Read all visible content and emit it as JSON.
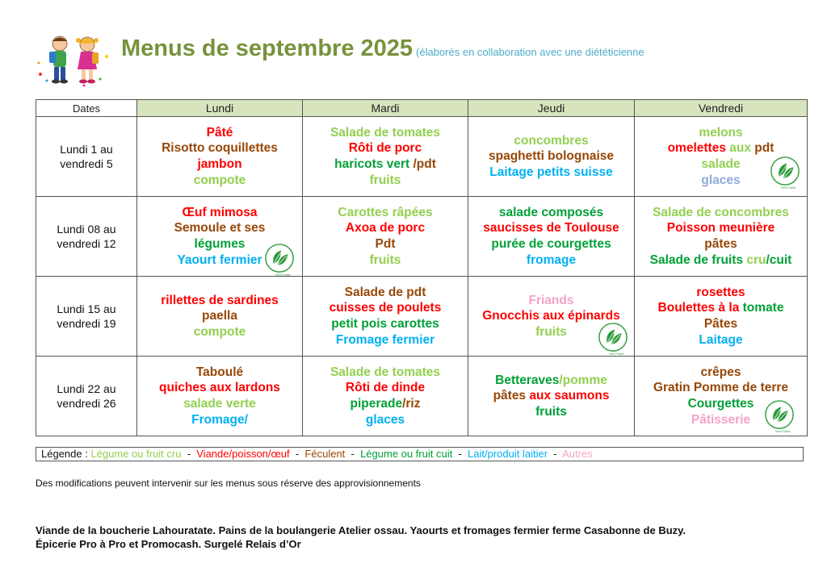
{
  "title": {
    "main": "Menus de septembre 2025",
    "sub": "(élaborés en collaboration avec une diététicienne"
  },
  "colors": {
    "cru": "#92d050",
    "viande": "#ff0000",
    "feculent": "#974706",
    "cuit": "#00a036",
    "laitier": "#00b0f0",
    "autres": "#f4a3c8",
    "glaces_alt": "#8eaadb",
    "title": "#77933c"
  },
  "table": {
    "headers": [
      "Dates",
      "Lundi",
      "Mardi",
      "Jeudi",
      "Vendredi"
    ],
    "weeks": [
      {
        "dates": [
          "Lundi 1 au",
          "vendredi  5"
        ],
        "days": [
          [
            [
              [
                "Pâté",
                "viande"
              ]
            ],
            [
              [
                "Risotto coquillettes",
                "feculent"
              ]
            ],
            [
              [
                "jambon",
                "viande"
              ]
            ],
            [
              [
                "compote",
                "cru"
              ]
            ]
          ],
          [
            [
              [
                "Salade de tomates",
                "cru"
              ]
            ],
            [
              [
                "Rôti de  porc",
                "viande"
              ]
            ],
            [
              [
                "haricots vert ",
                "cuit"
              ],
              [
                "/pdt",
                "feculent"
              ]
            ],
            [
              [
                "fruits",
                "cru"
              ]
            ]
          ],
          [
            [
              [
                "concombres",
                "cru"
              ]
            ],
            [
              [
                "spaghetti bolognaise",
                "feculent"
              ]
            ],
            [
              [
                "Laitage petits suisse",
                "laitier"
              ]
            ]
          ],
          [
            [
              [
                "melons",
                "cru"
              ]
            ],
            [
              [
                "omelettes ",
                "viande"
              ],
              [
                "aux ",
                "cru"
              ],
              [
                "pdt",
                "feculent"
              ]
            ],
            [
              [
                "salade",
                "cru"
              ]
            ],
            [
              [
                "glaces",
                "glaces_alt"
              ]
            ]
          ]
        ]
      },
      {
        "dates": [
          "Lundi 08 au",
          "vendredi 12"
        ],
        "days": [
          [
            [
              [
                "Œuf mimosa",
                "viande"
              ]
            ],
            [
              [
                "Semoule et ses",
                "feculent"
              ]
            ],
            [
              [
                "légumes",
                "cuit"
              ]
            ],
            [
              [
                "Yaourt fermier",
                "laitier"
              ]
            ]
          ],
          [
            [
              [
                "Carottes râpées",
                "cru"
              ]
            ],
            [
              [
                "Axoa de porc",
                "viande"
              ]
            ],
            [
              [
                "Pdt",
                "feculent"
              ]
            ],
            [
              [
                "fruits",
                "cru"
              ]
            ]
          ],
          [
            [
              [
                "salade composés",
                "cuit"
              ]
            ],
            [
              [
                "saucisses de Toulouse",
                "viande"
              ]
            ],
            [
              [
                "purée de  courgettes",
                "cuit"
              ]
            ],
            [
              [
                "fromage",
                "laitier"
              ]
            ]
          ],
          [
            [
              [
                "Salade de concombres",
                "cru"
              ]
            ],
            [
              [
                "Poisson meunière",
                "viande"
              ]
            ],
            [
              [
                "pâtes",
                "feculent"
              ]
            ],
            [
              [
                "Salade de fruits ",
                "cuit"
              ],
              [
                "cru",
                "cru"
              ],
              [
                "/cuit",
                "cuit"
              ]
            ]
          ]
        ]
      },
      {
        "dates": [
          "Lundi 15 au",
          "vendredi 19"
        ],
        "days": [
          [
            [
              [
                "rillettes de sardines",
                "viande"
              ]
            ],
            [
              [
                "paella",
                "feculent"
              ]
            ],
            [
              [
                "compote",
                "cru"
              ]
            ]
          ],
          [
            [
              [
                "Salade de pdt",
                "feculent"
              ]
            ],
            [
              [
                "cuisses de poulets",
                "viande"
              ]
            ],
            [
              [
                "petit pois  carottes",
                "cuit"
              ]
            ],
            [
              [
                "Fromage fermier",
                "laitier"
              ]
            ]
          ],
          [
            [
              [
                "Friands",
                "autres"
              ]
            ],
            [
              [
                "Gnocchis aux épinards",
                "viande"
              ]
            ],
            [
              [
                "fruits",
                "cru"
              ]
            ]
          ],
          [
            [
              [
                "rosettes",
                "viande"
              ]
            ],
            [
              [
                "Boulettes  à la ",
                "viande"
              ],
              [
                "tomate",
                "cuit"
              ]
            ],
            [
              [
                "Pâtes",
                "feculent"
              ]
            ],
            [
              [
                "Laitage",
                "laitier"
              ]
            ]
          ]
        ]
      },
      {
        "dates": [
          "Lundi 22 au",
          "vendredi 26"
        ],
        "days": [
          [
            [
              [
                "Taboulé",
                "feculent"
              ]
            ],
            [
              [
                "quiches aux lardons",
                "viande"
              ]
            ],
            [
              [
                "salade verte",
                "cru"
              ]
            ],
            [
              [
                "Fromage/",
                "laitier"
              ]
            ]
          ],
          [
            [
              [
                "Salade de tomates",
                "cru"
              ]
            ],
            [
              [
                "Rôti de  dinde",
                "viande"
              ]
            ],
            [
              [
                "piperade",
                "cuit"
              ],
              [
                "/riz",
                "feculent"
              ]
            ],
            [
              [
                "glaces",
                "laitier"
              ]
            ]
          ],
          [
            [
              [
                "Betteraves",
                "cuit"
              ],
              [
                "/pomme",
                "cru"
              ]
            ],
            [
              [
                "pâtes ",
                "feculent"
              ],
              [
                "aux saumons",
                "viande"
              ]
            ],
            [
              [
                "fruits",
                "cuit"
              ]
            ]
          ],
          [
            [
              [
                "crêpes",
                "feculent"
              ]
            ],
            [
              [
                "Gratin Pomme de terre",
                "feculent"
              ]
            ],
            [
              [
                "Courgettes",
                "cuit"
              ]
            ],
            [
              [
                "Pâtisserie",
                "autres"
              ]
            ]
          ]
        ]
      }
    ]
  },
  "bio_badge": {
    "label": "Vert Fruité",
    "icon": "leaf-badge-icon"
  },
  "legend": [
    [
      "Légende : ",
      "plain"
    ],
    [
      "Légume ou fruit cru",
      "cru"
    ],
    [
      "  -  ",
      "plain"
    ],
    [
      "Viande/poisson/œuf",
      "viande"
    ],
    [
      "  -  ",
      "plain"
    ],
    [
      "Féculent",
      "feculent"
    ],
    [
      "  -  ",
      "plain"
    ],
    [
      "Légume ou fruit cuit",
      "cuit"
    ],
    [
      "  -  ",
      "plain"
    ],
    [
      "Lait/produit laitier",
      "laitier"
    ],
    [
      "  -  ",
      "plain"
    ],
    [
      "Autres",
      "autres"
    ]
  ],
  "note": "Des modifications peuvent intervenir sur les menus sous réserve des approvisionnements",
  "suppliers": [
    "Viande de la boucherie  Lahouratate. Pains de la boulangerie  Atelier ossau. Yaourts et fromages fermier ferme Casabonne de Buzy.",
    "Épicerie Pro à Pro et Promocash. Surgelé Relais d’Or"
  ]
}
